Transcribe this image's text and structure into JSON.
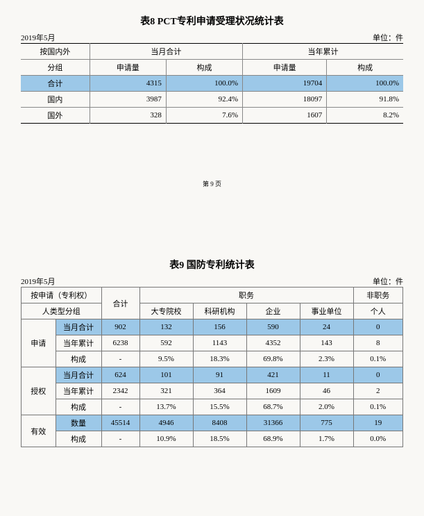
{
  "table8": {
    "title": "表8  PCT专利申请受理状况统计表",
    "period": "2019年5月",
    "unit": "单位：件",
    "headers": {
      "group_top": "按国内外",
      "group_bottom": "分组",
      "month_total": "当月合计",
      "year_total": "当年累计",
      "apply_qty": "申请量",
      "composition": "构成"
    },
    "rows": [
      {
        "label": "合计",
        "m_qty": "4315",
        "m_pct": "100.0%",
        "y_qty": "19704",
        "y_pct": "100.0%",
        "hl": true
      },
      {
        "label": "国内",
        "m_qty": "3987",
        "m_pct": "92.4%",
        "y_qty": "18097",
        "y_pct": "91.8%",
        "hl": false
      },
      {
        "label": "国外",
        "m_qty": "328",
        "m_pct": "7.6%",
        "y_qty": "1607",
        "y_pct": "8.2%",
        "hl": false
      }
    ]
  },
  "page_num": "第 9 页",
  "table9": {
    "title": "表9  国防专利统计表",
    "period": "2019年5月",
    "unit": "单位：件",
    "headers": {
      "group_top": "按申请（专利权）",
      "group_bottom": "人类型分组",
      "total": "合计",
      "service": "职务",
      "nonservice": "非职务",
      "col1": "大专院校",
      "col2": "科研机构",
      "col3": "企业",
      "col4": "事业单位",
      "col5": "个人"
    },
    "sections": [
      {
        "label": "申请",
        "rows": [
          {
            "sub": "当月合计",
            "total": "902",
            "c1": "132",
            "c2": "156",
            "c3": "590",
            "c4": "24",
            "c5": "0",
            "hl": true
          },
          {
            "sub": "当年累计",
            "total": "6238",
            "c1": "592",
            "c2": "1143",
            "c3": "4352",
            "c4": "143",
            "c5": "8",
            "hl": false
          },
          {
            "sub": "构成",
            "total": "-",
            "c1": "9.5%",
            "c2": "18.3%",
            "c3": "69.8%",
            "c4": "2.3%",
            "c5": "0.1%",
            "hl": false
          }
        ]
      },
      {
        "label": "授权",
        "rows": [
          {
            "sub": "当月合计",
            "total": "624",
            "c1": "101",
            "c2": "91",
            "c3": "421",
            "c4": "11",
            "c5": "0",
            "hl": true
          },
          {
            "sub": "当年累计",
            "total": "2342",
            "c1": "321",
            "c2": "364",
            "c3": "1609",
            "c4": "46",
            "c5": "2",
            "hl": false
          },
          {
            "sub": "构成",
            "total": "-",
            "c1": "13.7%",
            "c2": "15.5%",
            "c3": "68.7%",
            "c4": "2.0%",
            "c5": "0.1%",
            "hl": false
          }
        ]
      },
      {
        "label": "有效",
        "rows": [
          {
            "sub": "数量",
            "total": "45514",
            "c1": "4946",
            "c2": "8408",
            "c3": "31366",
            "c4": "775",
            "c5": "19",
            "hl": true
          },
          {
            "sub": "构成",
            "total": "-",
            "c1": "10.9%",
            "c2": "18.5%",
            "c3": "68.9%",
            "c4": "1.7%",
            "c5": "0.0%",
            "hl": false
          }
        ]
      }
    ]
  }
}
